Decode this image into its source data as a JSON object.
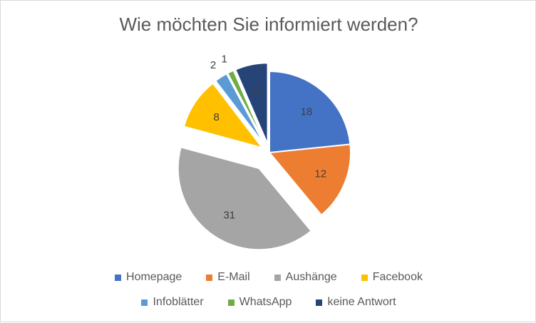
{
  "chart_data": {
    "type": "pie",
    "title": "Wie möchten Sie informiert werden?",
    "legend_position": "bottom",
    "slices": [
      {
        "name": "Homepage",
        "value": 18,
        "color": "#4472c4",
        "explode": 0
      },
      {
        "name": "E-Mail",
        "value": 12,
        "color": "#ed7d31",
        "explode": 0
      },
      {
        "name": "Aushänge",
        "value": 31,
        "color": "#a5a5a5",
        "explode": 1
      },
      {
        "name": "Facebook",
        "value": 8,
        "color": "#ffc000",
        "explode": 1
      },
      {
        "name": "Infoblätter",
        "value": 2,
        "color": "#5b9bd5",
        "explode": 1
      },
      {
        "name": "WhatsApp",
        "value": 1,
        "color": "#70ad47",
        "explode": 1
      },
      {
        "name": "keine Antwort",
        "value": 5,
        "color": "#264478",
        "explode": 1
      }
    ]
  }
}
